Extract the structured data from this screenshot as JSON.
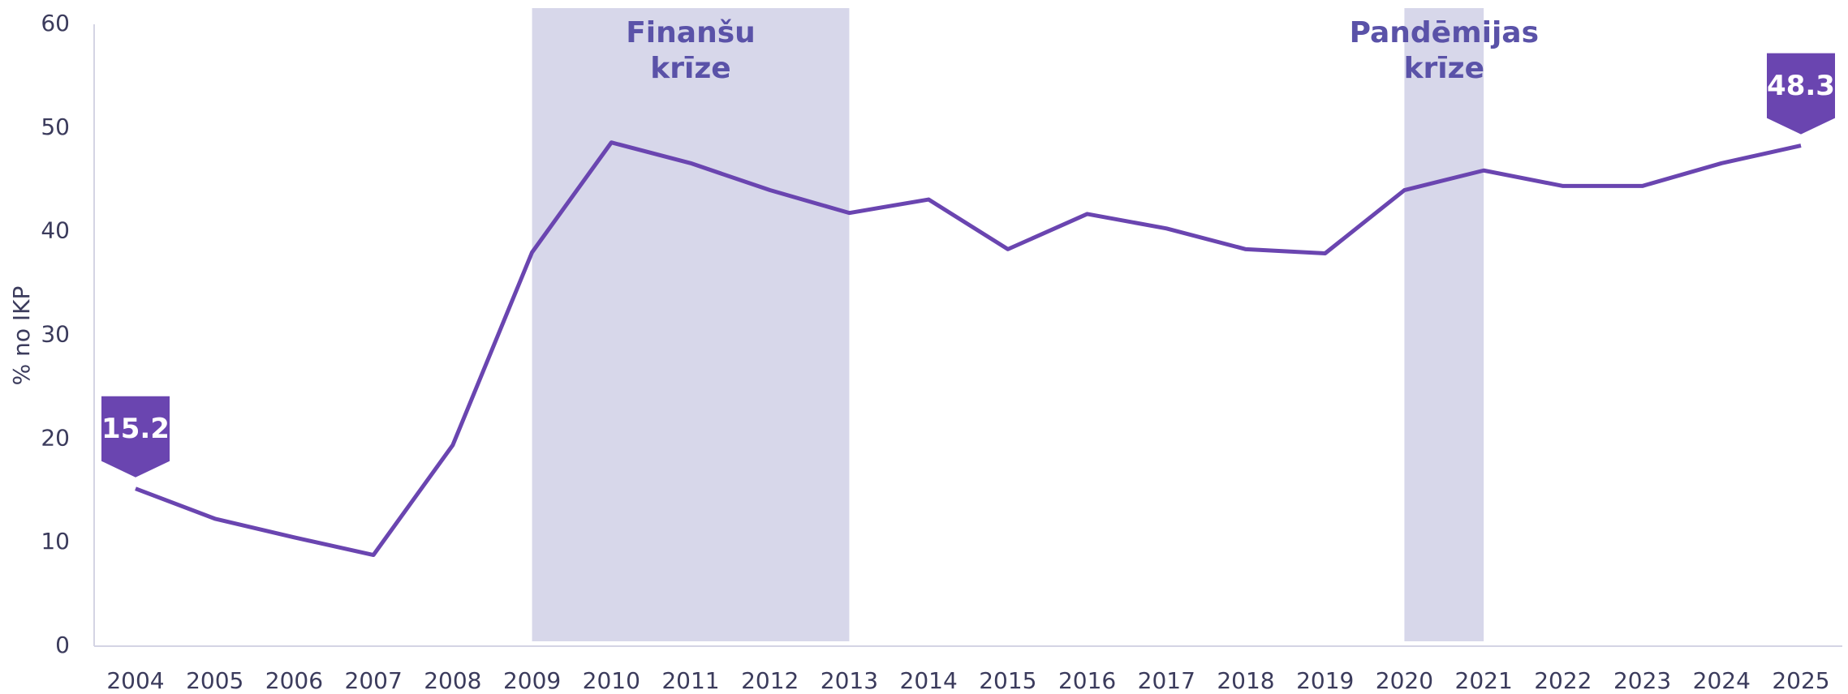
{
  "chart_data": {
    "type": "line",
    "y_label": "% no IKP",
    "categories": [
      "2004",
      "2005",
      "2006",
      "2007",
      "2008",
      "2009",
      "2010",
      "2011",
      "2012",
      "2013",
      "2014",
      "2015",
      "2016",
      "2017",
      "2018",
      "2019",
      "2020",
      "2021",
      "2022",
      "2023",
      "2024",
      "2025"
    ],
    "series": [
      {
        "name": "% no IKP",
        "color": "#6a45b0",
        "values": [
          15.2,
          12.3,
          10.5,
          8.8,
          19.4,
          38.0,
          48.6,
          46.6,
          44.0,
          41.8,
          43.1,
          38.3,
          41.7,
          40.3,
          38.3,
          37.9,
          44.0,
          45.9,
          44.4,
          44.4,
          46.6,
          48.3
        ]
      }
    ],
    "data_labels": "first-last",
    "highlights": [
      {
        "lines": [
          "Finanšu",
          "krīze"
        ],
        "start": "2009",
        "end": "2013",
        "color": "#d7d7ea"
      },
      {
        "lines": [
          "Pandēmijas",
          "krīze"
        ],
        "start": "2020",
        "end": "2021",
        "color": "#d7d7ea"
      }
    ],
    "ylim": [
      0,
      60
    ],
    "yticks": [
      0,
      10,
      20,
      30,
      40,
      50,
      60
    ],
    "grid": false
  }
}
